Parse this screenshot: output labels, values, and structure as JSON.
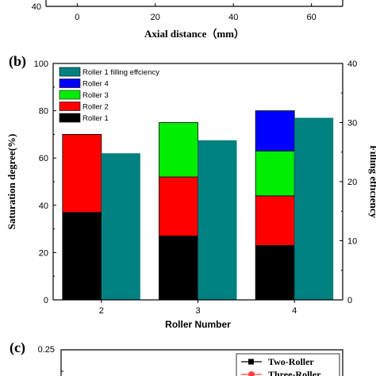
{
  "panel_a": {
    "xlabel": "Axial distance（mm）",
    "x_ticks": [
      "0",
      "20",
      "40",
      "60"
    ],
    "y_tick": "40"
  },
  "panel_b": {
    "label": "(b)",
    "ylabel_left": "Saturation degree(%)",
    "ylabel_right": "Filling efficiency",
    "xlabel": "Roller Number",
    "y_ticks_left": [
      "0",
      "20",
      "40",
      "60",
      "80",
      "100"
    ],
    "y_ticks_right": [
      "0",
      "10",
      "20",
      "30",
      "40"
    ],
    "x_ticks": [
      "2",
      "3",
      "4"
    ]
  },
  "panel_c": {
    "label": "(c)",
    "y_tick": "0.25",
    "legend": [
      "Two-Roller",
      "Three-Roller"
    ]
  },
  "colors": {
    "roller1": "#000000",
    "roller2": "#ff0000",
    "roller3": "#00ee00",
    "roller4": "#0000ff",
    "filling": "#008080",
    "three_roller_marker": "#ff4040"
  },
  "chart_data": [
    {
      "type": "line",
      "xlabel": "Axial distance（mm）",
      "xlim": [
        -8,
        68
      ],
      "x_ticks": [
        0,
        20,
        40,
        60
      ]
    },
    {
      "type": "bar",
      "categories": [
        "2",
        "3",
        "4"
      ],
      "xlabel": "Roller Number",
      "ylabel": "Saturation degree(%)",
      "ylim": [
        0,
        100
      ],
      "y2label": "Filling efficiency",
      "y2lim": [
        0,
        40
      ],
      "legend_position": "top-left",
      "stacked_series": [
        {
          "name": "Roller 1",
          "values": [
            37,
            27,
            23
          ]
        },
        {
          "name": "Roller 2",
          "values": [
            33,
            25,
            21
          ]
        },
        {
          "name": "Roller 3",
          "values": [
            0,
            23,
            19
          ]
        },
        {
          "name": "Roller 4",
          "values": [
            0,
            0,
            17
          ]
        }
      ],
      "secondary_series": {
        "name": "Roller 1 filling effciency",
        "axis": "right",
        "values": [
          24.8,
          27.0,
          30.8
        ]
      }
    },
    {
      "type": "line",
      "ylim_top": 0.25,
      "legend": [
        "Two-Roller",
        "Three-Roller"
      ]
    }
  ]
}
